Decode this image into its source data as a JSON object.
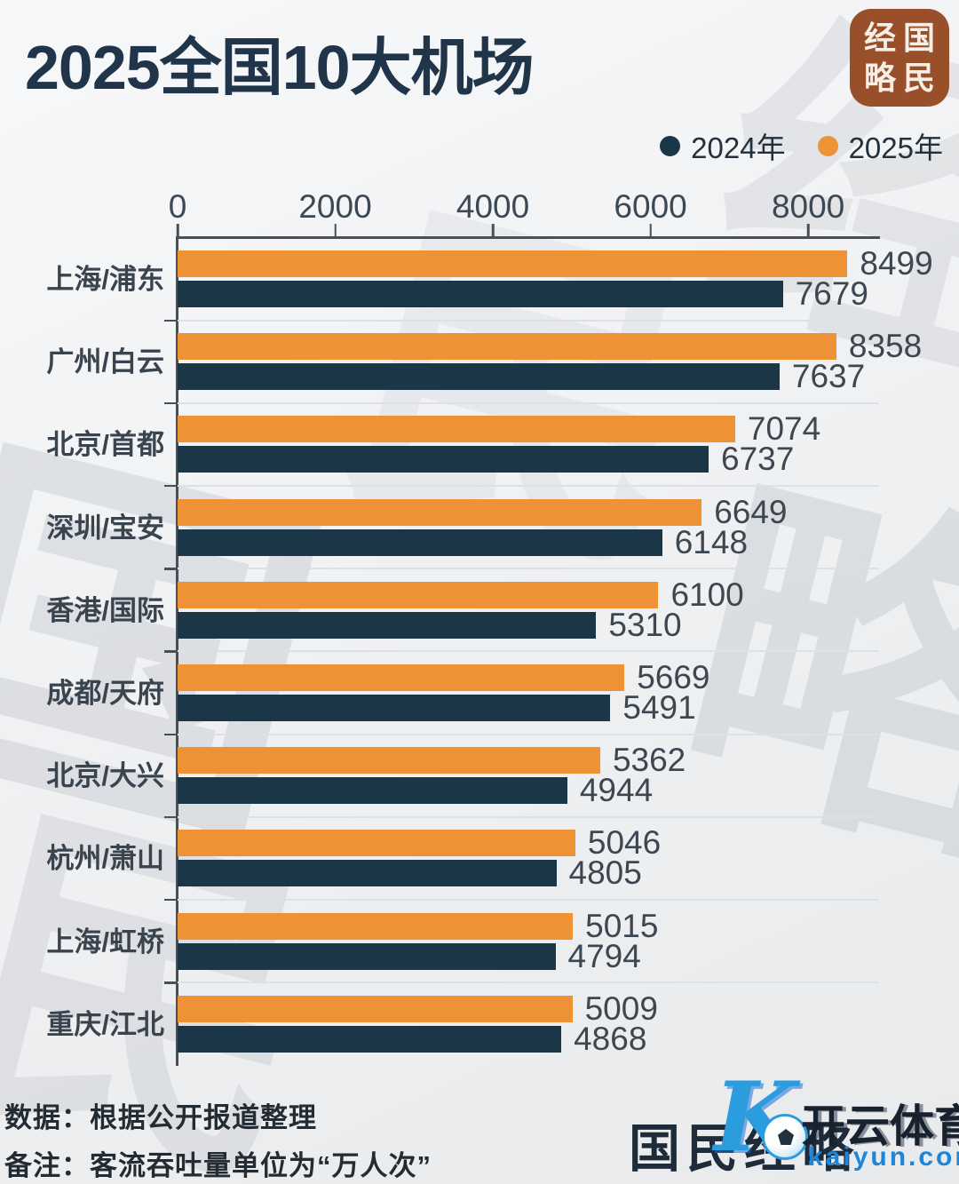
{
  "header": {
    "title": "2025全国10大机场"
  },
  "logo": {
    "chars": [
      "经",
      "国",
      "略",
      "民"
    ],
    "bg_color": "#9a4f2b"
  },
  "legend": [
    {
      "label": "2024年",
      "color": "#1b3647"
    },
    {
      "label": "2025年",
      "color": "#ee9235"
    }
  ],
  "chart_data": {
    "type": "bar",
    "orientation": "horizontal",
    "categories": [
      "上海/浦东",
      "广州/白云",
      "北京/首都",
      "深圳/宝安",
      "香港/国际",
      "成都/天府",
      "北京/大兴",
      "杭州/萧山",
      "上海/虹桥",
      "重庆/江北"
    ],
    "series": [
      {
        "name": "2025年",
        "color": "#ee9235",
        "values": [
          8499,
          8358,
          7074,
          6649,
          6100,
          5669,
          5362,
          5046,
          5015,
          5009
        ]
      },
      {
        "name": "2024年",
        "color": "#1b3647",
        "values": [
          7679,
          7637,
          6737,
          6148,
          5310,
          5491,
          4944,
          4805,
          4794,
          4868
        ]
      }
    ],
    "x_ticks": [
      0,
      2000,
      4000,
      6000,
      8000
    ],
    "xlim": [
      0,
      8900
    ],
    "unit": "万人次",
    "grid": "group-separators",
    "legend_position": "top-right",
    "value_labels": "outside-end"
  },
  "footer": {
    "line1": "数据：根据公开报道整理",
    "line2": "备注：客流吞吐量单位为“万人次”"
  },
  "signature": {
    "caption": "国民经略",
    "k_glyph": "K",
    "brand": "开云体育",
    "url": "kaiyun.com",
    "brand_blue": "#1d86d8"
  },
  "watermark": {
    "w1": "经",
    "w2": "国",
    "w3": "民",
    "w4": "略",
    "w5": "民"
  },
  "colors": {
    "title": "#20344a",
    "bar_2025": "#ee9235",
    "bar_2024": "#1b3647",
    "axis": "#4a4f55",
    "value_text": "#3d4751",
    "background": "#f1f2f4"
  }
}
